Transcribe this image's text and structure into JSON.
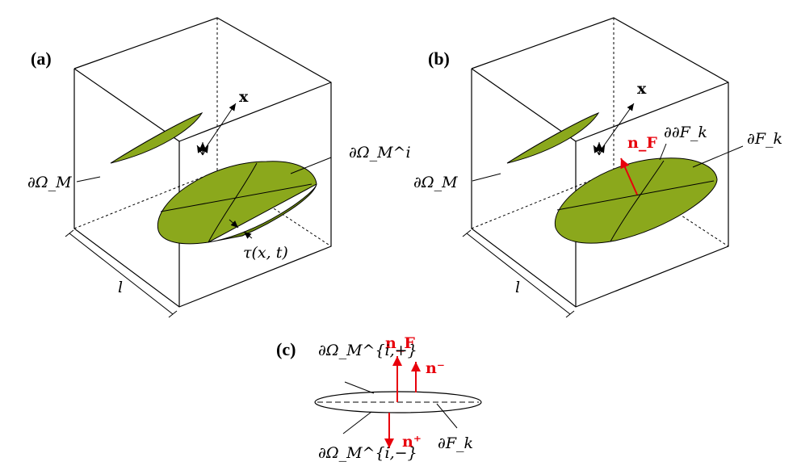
{
  "panels": {
    "a": {
      "label": "(a)",
      "boundary_label": "∂Ω_M",
      "crack_label": "∂Ω_M^i",
      "x_label": "x",
      "traction_label": "τ(x, t)",
      "length_label": "l"
    },
    "b": {
      "label": "(b)",
      "boundary_label": "∂Ω_M",
      "edge_label": "∂∂F_k",
      "fracture_label": "∂F_k",
      "x_label": "x",
      "normal_label": "n_F",
      "length_label": "l"
    },
    "c": {
      "label": "(c)",
      "upper_face_label": "∂Ω_M^{i,+}",
      "lower_face_label": "∂Ω_M^{i,−}",
      "fracture_label": "∂F_k",
      "normal_f_label": "n_F",
      "normal_minus_label": "n⁻",
      "normal_plus_label": "n⁺"
    }
  },
  "colors": {
    "fracture_fill": "#8ba81c",
    "normal_arrow": "#e8000b",
    "line": "#000000"
  }
}
